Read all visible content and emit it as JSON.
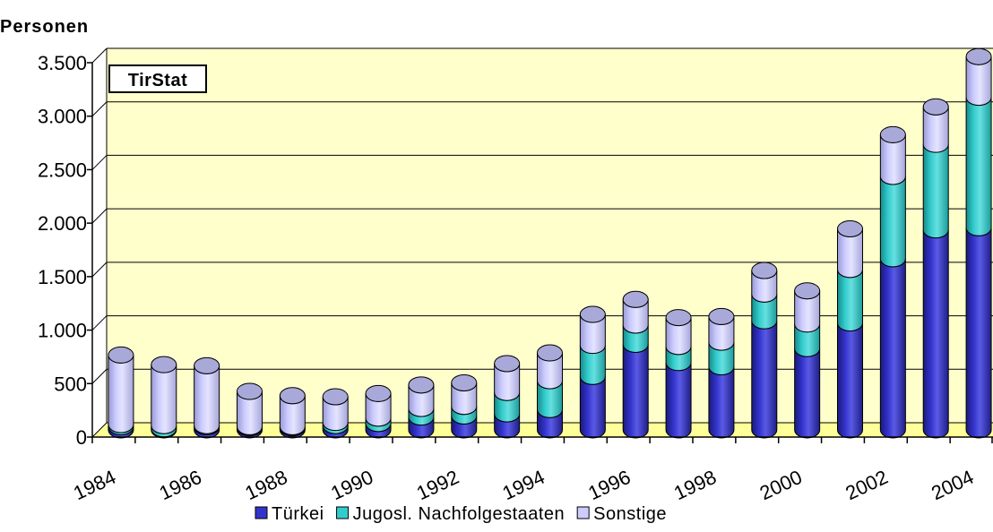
{
  "chart_data": {
    "type": "bar",
    "stacked": true,
    "title": "",
    "ylabel": "Personen",
    "xlabel": "",
    "badge": "TirStat",
    "ylim": [
      0,
      3500
    ],
    "yticks": [
      0,
      500,
      1000,
      1500,
      2000,
      2500,
      3000,
      3500
    ],
    "ytick_labels": [
      "0",
      "500",
      "1.000",
      "1.500",
      "2.000",
      "2.500",
      "3.000",
      "3.500"
    ],
    "x": [
      1984,
      1985,
      1986,
      1987,
      1988,
      1989,
      1990,
      1991,
      1992,
      1993,
      1994,
      1995,
      1996,
      1997,
      1998,
      1999,
      2000,
      2001,
      2002,
      2003,
      2004
    ],
    "xtick_labels": [
      "1984",
      "1986",
      "1988",
      "1990",
      "1992",
      "1994",
      "1996",
      "1998",
      "2000",
      "2002",
      "2004"
    ],
    "grid": true,
    "legend_position": "bottom",
    "series": [
      {
        "name": "Türkei",
        "color": "#3333cc",
        "values": [
          30,
          10,
          30,
          20,
          20,
          40,
          60,
          120,
          130,
          150,
          190,
          500,
          800,
          630,
          590,
          1020,
          760,
          1000,
          1600,
          1870,
          1890
        ]
      },
      {
        "name": "Jugosl. Nachfolgestaaten",
        "color": "#33cccc",
        "values": [
          20,
          30,
          10,
          10,
          10,
          30,
          50,
          80,
          90,
          200,
          270,
          290,
          180,
          150,
          230,
          250,
          230,
          500,
          770,
          800,
          1220
        ]
      },
      {
        "name": "Sonstige",
        "color": "#ccccff",
        "values": [
          650,
          570,
          560,
          330,
          290,
          240,
          230,
          220,
          220,
          270,
          260,
          290,
          240,
          270,
          240,
          220,
          310,
          380,
          390,
          350,
          380
        ]
      }
    ],
    "colors": {
      "plot_background": "#ffffcc",
      "floor": "#ffff99",
      "gridline": "#000000"
    }
  }
}
